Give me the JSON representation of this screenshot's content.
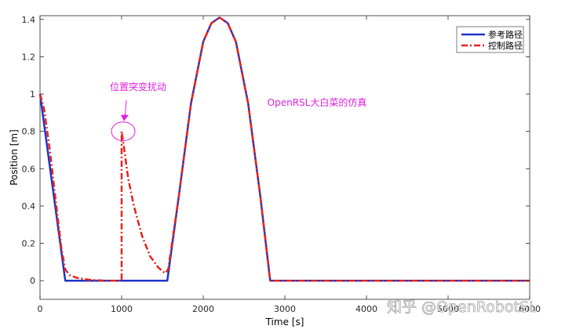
{
  "chart_data": {
    "type": "line",
    "xlabel": "Time [s]",
    "ylabel": "Position [m]",
    "xlim": [
      0,
      6000
    ],
    "ylim": [
      -0.1,
      1.42
    ],
    "xticks": [
      0,
      1000,
      2000,
      3000,
      4000,
      5000,
      6000
    ],
    "yticks": [
      0,
      0.2,
      0.4,
      0.6,
      0.8,
      1,
      1.2,
      1.4
    ],
    "xtick_labels": [
      "0",
      "1000",
      "2000",
      "3000",
      "4000",
      "5000",
      "6000"
    ],
    "ytick_labels": [
      "0",
      "0.2",
      "0.4",
      "0.6",
      "0.8",
      "1",
      "1.2",
      "1.4"
    ],
    "grid": false,
    "legend_position": "top-right",
    "series": [
      {
        "name": "参考路径",
        "color": "#1f33c8",
        "style": "solid",
        "x": [
          0,
          310,
          1560,
          1700,
          1850,
          2000,
          2100,
          2200,
          2300,
          2400,
          2550,
          2700,
          2820,
          6000
        ],
        "y": [
          1.0,
          0.0,
          0.0,
          0.45,
          0.95,
          1.28,
          1.38,
          1.41,
          1.38,
          1.28,
          0.95,
          0.45,
          0.0,
          0.0
        ]
      },
      {
        "name": "控制路径",
        "color": "#e8231b",
        "style": "dashdot",
        "x": [
          0,
          50,
          120,
          200,
          260,
          310,
          360,
          450,
          600,
          800,
          1000,
          1000,
          1020,
          1080,
          1150,
          1250,
          1350,
          1450,
          1530,
          1570,
          1700,
          1850,
          2000,
          2100,
          2200,
          2300,
          2400,
          2550,
          2700,
          2820,
          6000
        ],
        "y": [
          1.0,
          0.92,
          0.7,
          0.4,
          0.18,
          0.06,
          0.03,
          0.015,
          0.005,
          0.0,
          0.0,
          0.8,
          0.74,
          0.55,
          0.4,
          0.24,
          0.13,
          0.07,
          0.04,
          0.06,
          0.45,
          0.95,
          1.28,
          1.38,
          1.41,
          1.38,
          1.28,
          0.95,
          0.45,
          0.0,
          0.0
        ]
      }
    ],
    "annotations": [
      {
        "text": "位置突变扰动",
        "color": "#e020e0"
      },
      {
        "text": "OpenRSL大白菜的仿真",
        "color": "#e020e0"
      }
    ],
    "annotation_marker": {
      "x": 1000,
      "y": 0.8,
      "color": "#e020e0"
    }
  },
  "watermark": {
    "text": "知乎 @OpenRobotSL"
  }
}
